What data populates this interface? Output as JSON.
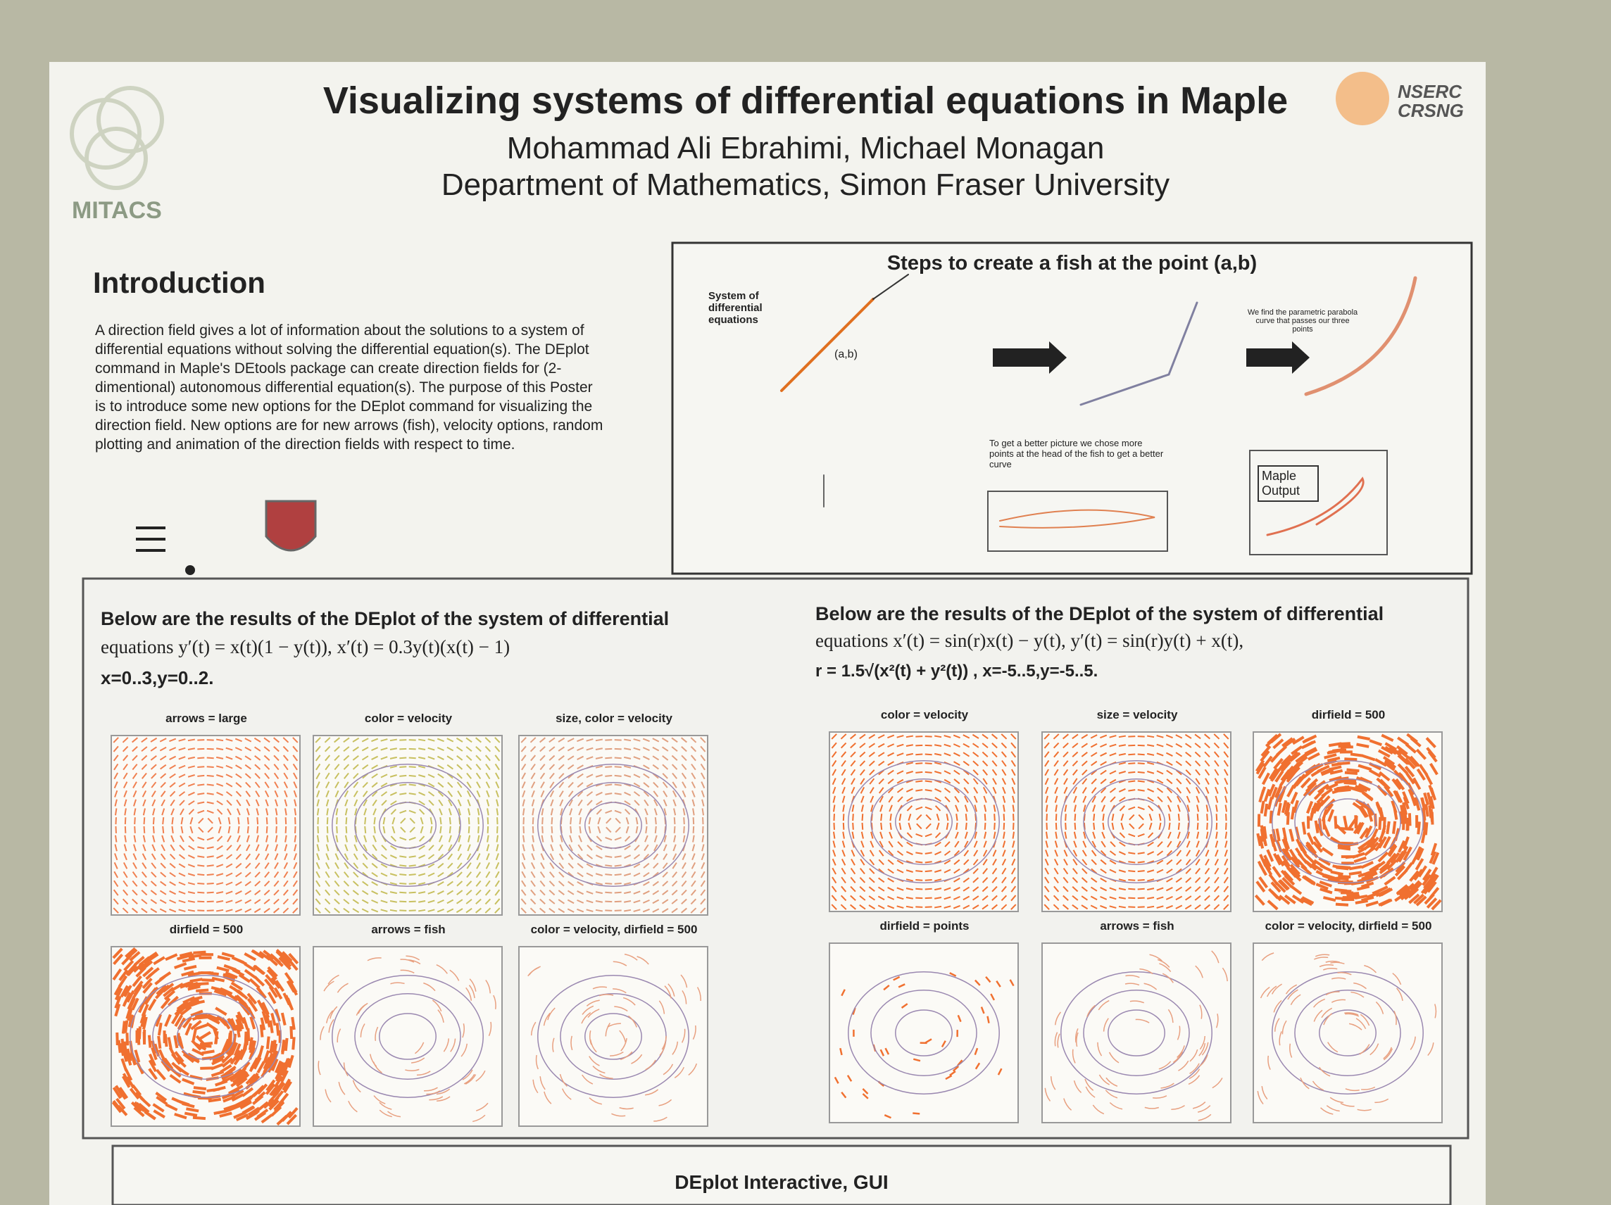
{
  "header": {
    "title": "Visualizing systems of differential equations in Maple",
    "authors": "Mohammad Ali Ebrahimi, Michael Monagan",
    "affiliation": "Department of Mathematics, Simon Fraser University",
    "logo_left": "MITACS",
    "logo_right": [
      "NSERC",
      "CRSNG"
    ]
  },
  "introduction": {
    "heading": "Introduction",
    "text": "A direction field gives a lot of information about the solutions to a system of differential equations without solving the differential equation(s). The DEplot command in Maple's DEtools package can create direction fields for (2-dimentional) autonomous differential equation(s). The purpose of this Poster is to introduce some new options for the DEplot command for visualizing the direction field. New options are for new arrows (fish), velocity options, random plotting and animation of the direction fields with respect to time."
  },
  "steps": {
    "title": "Steps  to create a fish at the point (a,b)",
    "system_label": "System of differential equations",
    "point_label": "(a,b)",
    "parabola_note": "We find the parametric parabola curve that passes our three points",
    "better_note": "To get a better picture we chose more points at the head of the fish to get a better curve",
    "maple_output": "Maple Output"
  },
  "left_section": {
    "caption": "Below are the results of the DEplot of the system of differential",
    "equation": "equations y′(t) = x(t)(1 − y(t)), x′(t) = 0.3y(t)(x(t) − 1)",
    "ranges": "x=0..3,y=0..2.",
    "plots": [
      "arrows = large",
      "color = velocity",
      "size, color = velocity",
      "dirfield = 500",
      "arrows = fish",
      "color = velocity, dirfield = 500"
    ]
  },
  "right_section": {
    "caption": "Below are the results of the DEplot of the system of differential",
    "equation": "equations x′(t) = sin(r)x(t) − y(t), y′(t) = sin(r)y(t) + x(t),",
    "ranges": "r = 1.5√(x²(t) + y²(t)) , x=-5..5,y=-5..5.",
    "plots": [
      "color = velocity",
      "size = velocity",
      "dirfield = 500",
      "dirfield = points",
      "arrows = fish",
      "color = velocity, dirfield = 500"
    ]
  },
  "footer": {
    "title": "DEplot Interactive, GUI"
  }
}
